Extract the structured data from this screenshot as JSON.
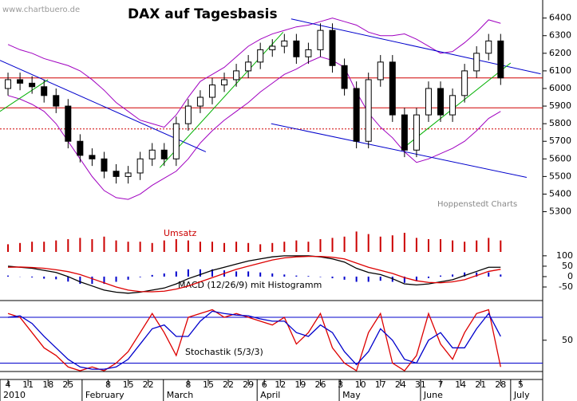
{
  "chart_data": {
    "type": "candlestick",
    "title": "DAX auf Tagesbasis",
    "watermark": "www.chartbuero.de",
    "source": "Hoppenstedt Charts",
    "x": [
      0,
      3,
      6,
      9,
      12,
      15,
      18,
      21,
      24,
      27,
      30,
      33,
      36,
      39,
      42,
      45,
      48,
      51,
      54,
      57,
      60,
      63,
      66,
      69,
      72,
      75,
      78,
      81,
      84,
      87,
      90,
      93,
      96,
      99,
      102,
      105,
      108,
      111,
      114,
      117,
      120,
      123
    ],
    "xlim": [
      -2,
      133.5
    ],
    "xticks": [
      {
        "value": 0,
        "label": "4"
      },
      {
        "value": 5,
        "label": "11"
      },
      {
        "value": 10,
        "label": "18"
      },
      {
        "value": 15,
        "label": "25"
      },
      {
        "value": 25,
        "label": "8"
      },
      {
        "value": 30,
        "label": "15"
      },
      {
        "value": 35,
        "label": "22"
      },
      {
        "value": 45,
        "label": "8"
      },
      {
        "value": 50,
        "label": "15"
      },
      {
        "value": 55,
        "label": "22"
      },
      {
        "value": 60,
        "label": "29"
      },
      {
        "value": 64,
        "label": "6"
      },
      {
        "value": 68,
        "label": "12"
      },
      {
        "value": 73,
        "label": "19"
      },
      {
        "value": 78,
        "label": "26"
      },
      {
        "value": 83,
        "label": "3"
      },
      {
        "value": 88,
        "label": "10"
      },
      {
        "value": 93,
        "label": "17"
      },
      {
        "value": 98,
        "label": "24"
      },
      {
        "value": 103,
        "label": "31"
      },
      {
        "value": 108,
        "label": "7"
      },
      {
        "value": 113,
        "label": "14"
      },
      {
        "value": 118,
        "label": "21"
      },
      {
        "value": 123,
        "label": "28"
      },
      {
        "value": 128,
        "label": "5"
      }
    ],
    "month_labels": [
      {
        "value": -2,
        "label": "2010"
      },
      {
        "value": 18.5,
        "label": "February"
      },
      {
        "value": 38.8,
        "label": "March"
      },
      {
        "value": 62.2,
        "label": "April"
      },
      {
        "value": 82.7,
        "label": "May"
      },
      {
        "value": 103,
        "label": "June"
      },
      {
        "value": 125.5,
        "label": "July"
      }
    ],
    "ylim": [
      5230,
      6480
    ],
    "yticks": [
      5300,
      5400,
      5500,
      5600,
      5700,
      5800,
      5900,
      6000,
      6100,
      6200,
      6300,
      6400
    ],
    "open": [
      6000,
      6050,
      6030,
      6010,
      5960,
      5900,
      5700,
      5620,
      5600,
      5530,
      5500,
      5520,
      5600,
      5650,
      5600,
      5800,
      5900,
      5950,
      6020,
      6050,
      6100,
      6150,
      6220,
      6240,
      6270,
      6180,
      6220,
      6330,
      6130,
      6000,
      5700,
      6050,
      6150,
      5850,
      5650,
      5850,
      6000,
      5850,
      5960,
      6100,
      6200,
      6270
    ],
    "high": [
      6090,
      6090,
      6070,
      6050,
      6000,
      5940,
      5740,
      5660,
      5640,
      5570,
      5560,
      5640,
      5690,
      5690,
      5840,
      5940,
      5990,
      6060,
      6090,
      6140,
      6190,
      6260,
      6280,
      6310,
      6310,
      6260,
      6370,
      6370,
      6170,
      6040,
      6090,
      6190,
      6190,
      5890,
      5890,
      6040,
      6040,
      6000,
      6140,
      6240,
      6310,
      6310
    ],
    "low": [
      5960,
      5990,
      5970,
      5920,
      5860,
      5660,
      5580,
      5560,
      5490,
      5460,
      5460,
      5480,
      5560,
      5560,
      5560,
      5760,
      5860,
      5910,
      5980,
      6010,
      6060,
      6110,
      6180,
      6200,
      6140,
      6140,
      6180,
      6090,
      5960,
      5660,
      5660,
      6010,
      5810,
      5610,
      5610,
      5810,
      5810,
      5810,
      5920,
      6060,
      6160,
      6020
    ],
    "close": [
      6050,
      6030,
      6010,
      5960,
      5900,
      5700,
      5620,
      5600,
      5530,
      5500,
      5520,
      5600,
      5650,
      5600,
      5800,
      5900,
      5950,
      6020,
      6050,
      6100,
      6150,
      6220,
      6240,
      6270,
      6180,
      6220,
      6330,
      6130,
      6000,
      5700,
      6050,
      6150,
      5850,
      5650,
      5850,
      6000,
      5850,
      5960,
      6100,
      6200,
      6270,
      6060
    ],
    "bands": {
      "color": "#a000c0",
      "upper": [
        6250,
        6220,
        6200,
        6170,
        6150,
        6130,
        6100,
        6050,
        5990,
        5920,
        5870,
        5820,
        5800,
        5780,
        5850,
        5950,
        6040,
        6080,
        6120,
        6180,
        6240,
        6280,
        6310,
        6330,
        6350,
        6360,
        6380,
        6400,
        6380,
        6360,
        6320,
        6300,
        6300,
        6310,
        6280,
        6240,
        6200,
        6210,
        6260,
        6320,
        6390,
        6370
      ],
      "lower": [
        5960,
        5940,
        5910,
        5870,
        5800,
        5700,
        5600,
        5500,
        5420,
        5380,
        5370,
        5400,
        5450,
        5490,
        5530,
        5600,
        5690,
        5760,
        5820,
        5870,
        5920,
        5980,
        6030,
        6080,
        6110,
        6150,
        6180,
        6160,
        6120,
        5980,
        5860,
        5780,
        5720,
        5640,
        5580,
        5600,
        5630,
        5660,
        5700,
        5760,
        5830,
        5870
      ]
    },
    "levels": [
      {
        "value": 6060,
        "color": "#d00000",
        "dashed": false
      },
      {
        "value": 5890,
        "color": "#d00000",
        "dashed": false
      },
      {
        "value": 5770,
        "color": "#d00000",
        "dashed": true
      }
    ],
    "trendlines": [
      {
        "color": "#0000cc",
        "x": [
          -2,
          49.4
        ],
        "y": [
          6160,
          5640
        ]
      },
      {
        "color": "#0000cc",
        "x": [
          70.7,
          133
        ],
        "y": [
          6395,
          6083
        ]
      },
      {
        "color": "#0000cc",
        "x": [
          65.7,
          129.5
        ],
        "y": [
          5800,
          5495
        ]
      },
      {
        "color": "#00b000",
        "x": [
          -2,
          10
        ],
        "y": [
          5870,
          6050
        ]
      },
      {
        "color": "#00b000",
        "x": [
          37.9,
          68.7
        ],
        "y": [
          5550,
          6320
        ]
      },
      {
        "color": "#00b000",
        "x": [
          98.6,
          125.5
        ],
        "y": [
          5660,
          6145
        ]
      }
    ],
    "volume": {
      "label": "Umsatz",
      "color": "#cc0000",
      "ylim": [
        0,
        100
      ],
      "values": [
        30,
        35,
        40,
        40,
        45,
        50,
        55,
        50,
        60,
        45,
        40,
        40,
        35,
        45,
        50,
        45,
        40,
        40,
        35,
        40,
        35,
        30,
        35,
        40,
        45,
        40,
        50,
        55,
        60,
        80,
        70,
        60,
        65,
        75,
        55,
        50,
        50,
        45,
        40,
        45,
        55,
        45
      ]
    },
    "macd": {
      "label": "MACD (12/26/9) mit Histogramm",
      "ylim": [
        -96,
        111
      ],
      "yticks": [
        100,
        50,
        0,
        -50
      ],
      "series": [
        {
          "color": "#000000",
          "values": [
            50,
            45,
            40,
            30,
            20,
            0,
            -25,
            -45,
            -65,
            -75,
            -80,
            -75,
            -65,
            -55,
            -35,
            -10,
            10,
            30,
            45,
            60,
            75,
            85,
            95,
            100,
            100,
            100,
            95,
            85,
            70,
            40,
            20,
            10,
            -10,
            -35,
            -40,
            -35,
            -25,
            -15,
            5,
            25,
            45,
            45
          ]
        },
        {
          "color": "#dd0000",
          "values": [
            45,
            46,
            44,
            40,
            33,
            24,
            10,
            -10,
            -30,
            -50,
            -65,
            -72,
            -73,
            -70,
            -60,
            -45,
            -25,
            -5,
            15,
            35,
            50,
            65,
            80,
            90,
            95,
            97,
            97,
            93,
            85,
            65,
            45,
            30,
            15,
            -5,
            -20,
            -28,
            -30,
            -25,
            -15,
            5,
            25,
            35
          ]
        }
      ],
      "histogram": {
        "color": "#0000cc",
        "values": [
          5,
          -1,
          -4,
          -10,
          -13,
          -24,
          -35,
          -35,
          -35,
          -25,
          -15,
          -3,
          8,
          15,
          25,
          35,
          35,
          35,
          30,
          25,
          25,
          20,
          15,
          10,
          5,
          3,
          -2,
          -8,
          -15,
          -25,
          -25,
          -20,
          -25,
          -30,
          -20,
          -7,
          5,
          10,
          20,
          20,
          20,
          10
        ]
      }
    },
    "stochastic": {
      "label": "Stochastik (5/3/3)",
      "ylim": [
        9,
        102
      ],
      "yticks": [
        50
      ],
      "levels": [
        80,
        20
      ],
      "level_color": "#0000cc",
      "series": [
        {
          "color": "#dd0000",
          "values": [
            85,
            80,
            60,
            40,
            30,
            15,
            10,
            15,
            10,
            20,
            35,
            60,
            85,
            60,
            30,
            80,
            85,
            90,
            80,
            85,
            80,
            75,
            70,
            80,
            45,
            60,
            85,
            40,
            20,
            10,
            60,
            85,
            20,
            10,
            30,
            85,
            45,
            25,
            60,
            85,
            90,
            15
          ]
        },
        {
          "color": "#0000cc",
          "values": [
            80,
            82,
            72,
            55,
            40,
            25,
            15,
            12,
            12,
            15,
            25,
            45,
            65,
            70,
            55,
            55,
            75,
            88,
            85,
            83,
            82,
            78,
            75,
            75,
            60,
            55,
            70,
            60,
            35,
            18,
            35,
            65,
            50,
            25,
            20,
            50,
            60,
            40,
            40,
            65,
            85,
            55
          ]
        }
      ]
    }
  }
}
